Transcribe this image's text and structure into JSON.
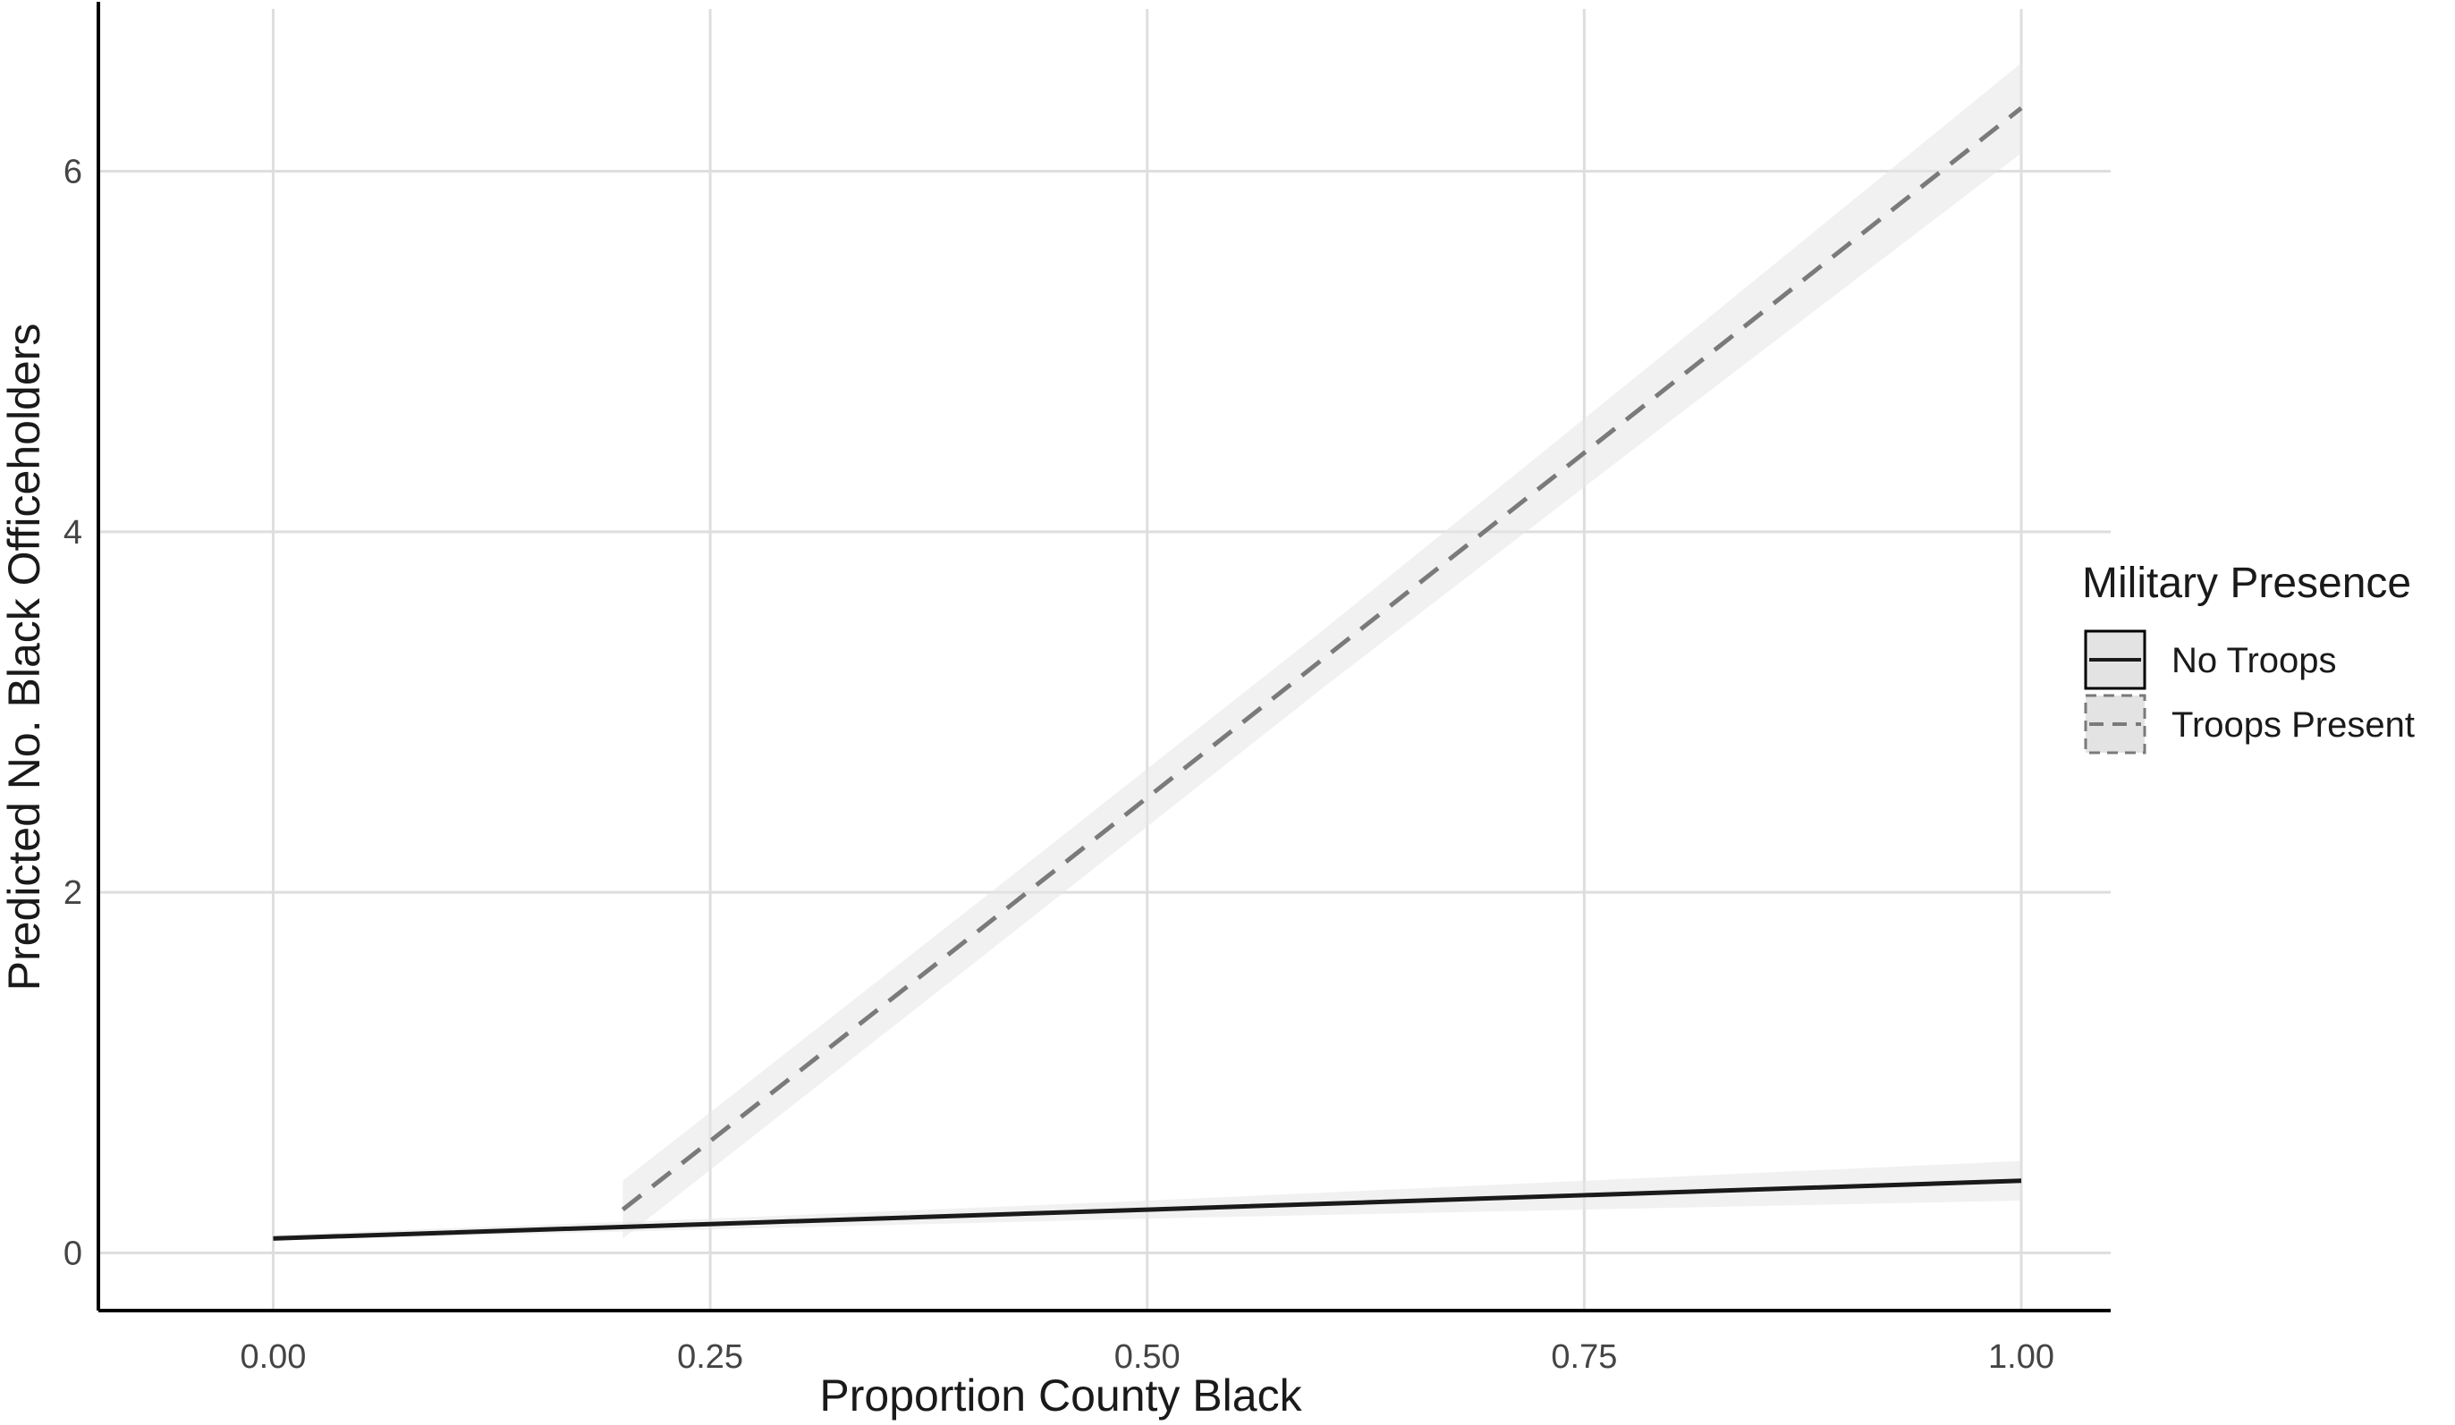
{
  "chart_data": {
    "type": "line",
    "title": "",
    "xlabel": "Proportion County Black",
    "ylabel": "Predicted No. Black Officeholders",
    "xlim": [
      -0.1,
      1.0
    ],
    "ylim": [
      -0.32,
      6.9
    ],
    "x_ticks": [
      0.0,
      0.25,
      0.5,
      0.75,
      1.0
    ],
    "x_tick_labels": [
      "0.00",
      "0.25",
      "0.50",
      "0.75",
      "1.00"
    ],
    "y_ticks": [
      0,
      2,
      4,
      6
    ],
    "y_tick_labels": [
      "0",
      "2",
      "4",
      "6"
    ],
    "grid": true,
    "legend": {
      "title": "Military Presence",
      "position": "right"
    },
    "series": [
      {
        "name": "No Troops",
        "line_style": "solid",
        "color": "#1a1a1a",
        "x": [
          0.0,
          0.25,
          0.5,
          0.75,
          1.0
        ],
        "y": [
          0.08,
          0.16,
          0.24,
          0.32,
          0.4
        ],
        "ci_lower": [
          0.07,
          0.13,
          0.19,
          0.24,
          0.29
        ],
        "ci_upper": [
          0.1,
          0.19,
          0.29,
          0.4,
          0.51
        ]
      },
      {
        "name": "Troops Present",
        "line_style": "dashed",
        "color": "#7a7a7a",
        "x": [
          0.2,
          0.4,
          0.6,
          0.8,
          1.0
        ],
        "y": [
          0.24,
          1.76,
          3.29,
          4.82,
          6.35
        ],
        "ci_lower": [
          0.08,
          1.6,
          3.13,
          4.62,
          6.1
        ],
        "ci_upper": [
          0.4,
          1.92,
          3.45,
          5.02,
          6.6
        ]
      }
    ],
    "colors": {
      "ribbon": "#e6e6e6",
      "grid": "#dedede",
      "axis": "#000000"
    }
  }
}
